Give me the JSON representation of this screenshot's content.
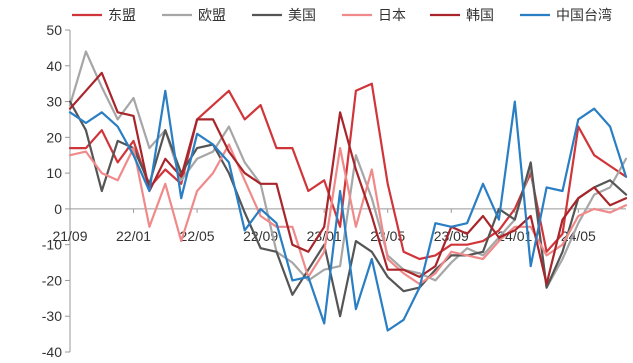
{
  "chart_data": {
    "type": "line",
    "title": "",
    "xlabel": "",
    "ylabel": "",
    "ylim": [
      -40,
      50
    ],
    "yticks": [
      50,
      40,
      30,
      20,
      10,
      0,
      -10,
      -20,
      -30,
      -40
    ],
    "xtick_labels": [
      "21/09",
      "22/01",
      "22/05",
      "22/09",
      "23/01",
      "23/05",
      "23/09",
      "24/01",
      "24/05"
    ],
    "x": [
      "21/09",
      "21/10",
      "21/11",
      "21/12",
      "22/01",
      "22/02",
      "22/03",
      "22/04",
      "22/05",
      "22/06",
      "22/07",
      "22/08",
      "22/09",
      "22/10",
      "22/11",
      "22/12",
      "23/01",
      "23/02",
      "23/03",
      "23/04",
      "23/05",
      "23/06",
      "23/07",
      "23/08",
      "23/09",
      "23/10",
      "23/11",
      "23/12",
      "24/01",
      "24/02",
      "24/03",
      "24/04",
      "24/05",
      "24/06",
      "24/07",
      "24/08"
    ],
    "legend_position": "top",
    "grid": false,
    "series": [
      {
        "name": "东盟",
        "color": "#d0353a",
        "values": [
          17,
          17,
          22,
          13,
          19,
          6,
          11,
          7,
          25,
          29,
          33,
          25,
          29,
          17,
          17,
          5,
          8,
          -5,
          33,
          35,
          7,
          -12,
          -14,
          -13,
          -10,
          -10,
          -9,
          -6,
          0,
          10,
          -12,
          -7,
          23,
          15,
          12,
          9
        ]
      },
      {
        "name": "欧盟",
        "color": "#a6a6a6",
        "values": [
          29,
          44,
          34,
          25,
          31,
          17,
          22,
          8,
          14,
          16,
          23,
          13,
          7,
          -12,
          -15,
          -20,
          -17,
          -16,
          15,
          3,
          -13,
          -17,
          -18,
          -20,
          -15,
          -11,
          -13,
          -8,
          -3,
          12,
          -22,
          -14,
          -4,
          4,
          6,
          14
        ]
      },
      {
        "name": "美国",
        "color": "#555555",
        "values": [
          30,
          22,
          5,
          19,
          17,
          7,
          22,
          10,
          17,
          18,
          10,
          -1,
          -11,
          -12,
          -24,
          -17,
          -10,
          -30,
          -9,
          -12,
          -19,
          -23,
          -22,
          -17,
          -13,
          -13,
          -12,
          0,
          -3,
          13,
          -22,
          -12,
          3,
          6,
          8,
          4
        ]
      },
      {
        "name": "日本",
        "color": "#f08a8a",
        "values": [
          15,
          16,
          10,
          8,
          17,
          -5,
          7,
          -9,
          5,
          10,
          18,
          8,
          -2,
          -5,
          -5,
          -19,
          -12,
          17,
          -5,
          11,
          -14,
          -18,
          -21,
          -18,
          -12,
          -13,
          -14,
          -9,
          -5,
          -5,
          -13,
          -10,
          -2,
          0,
          -1,
          1
        ]
      },
      {
        "name": "韩国",
        "color": "#a8262b",
        "values": [
          28,
          33,
          38,
          27,
          26,
          5,
          14,
          9,
          25,
          25,
          16,
          10,
          7,
          7,
          -10,
          -12,
          -5,
          27,
          11,
          -2,
          -17,
          -17,
          -19,
          -16,
          -5,
          -7,
          -2,
          -8,
          -6,
          -2,
          -21,
          -3,
          3,
          6,
          1,
          3
        ]
      },
      {
        "name": "中国台湾",
        "color": "#2a7ec3",
        "values": [
          27,
          24,
          27,
          23,
          15,
          5,
          33,
          3,
          21,
          18,
          13,
          -6,
          0,
          -4,
          -20,
          -19,
          -32,
          5,
          -28,
          -14,
          -34,
          -31,
          -22,
          -4,
          -5,
          -4,
          7,
          -3,
          30,
          -16,
          6,
          5,
          25,
          28,
          23,
          9
        ]
      }
    ]
  }
}
